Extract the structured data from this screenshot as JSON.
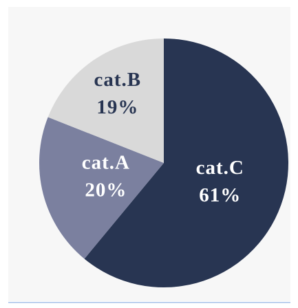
{
  "chart_data": {
    "type": "pie",
    "categories": [
      "cat.C",
      "cat.A",
      "cat.B"
    ],
    "values": [
      61,
      20,
      19
    ],
    "value_labels": [
      "61%",
      "20%",
      "19%"
    ],
    "colors": [
      "#283552",
      "#7b809f",
      "#d9d9d9"
    ]
  }
}
